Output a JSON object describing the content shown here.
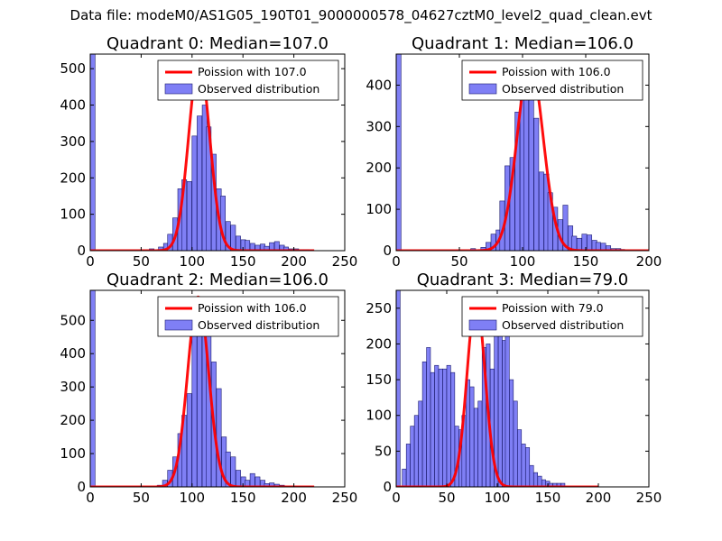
{
  "figure_title": "Data file: modeM0/AS1G05_190T01_9000000578_04627cztM0_level2_quad_clean.evt",
  "colors": {
    "bar_fill": "#7f7ff5",
    "bar_edge": "#1a1a6e",
    "curve": "#ff0000"
  },
  "chart_data": [
    {
      "type": "bar",
      "title": "Quadrant 0: Median=107.0",
      "xlim": [
        0,
        250
      ],
      "ylim": [
        0,
        540
      ],
      "xticks": [
        0,
        50,
        100,
        150,
        200,
        250
      ],
      "yticks": [
        0,
        100,
        200,
        300,
        400,
        500
      ],
      "legend": {
        "placement": "top-right",
        "curve_label": "Poission with 107.0",
        "bar_label": "Observed distribution"
      },
      "bin_width": 4.7,
      "bins": [
        [
          0,
          540
        ],
        [
          58,
          5
        ],
        [
          67,
          10
        ],
        [
          72,
          20
        ],
        [
          76,
          45
        ],
        [
          81,
          90
        ],
        [
          86,
          170
        ],
        [
          90,
          195
        ],
        [
          95,
          190
        ],
        [
          100,
          315
        ],
        [
          105,
          370
        ],
        [
          110,
          400
        ],
        [
          114,
          340
        ],
        [
          119,
          265
        ],
        [
          124,
          170
        ],
        [
          128,
          150
        ],
        [
          133,
          80
        ],
        [
          138,
          70
        ],
        [
          143,
          40
        ],
        [
          148,
          30
        ],
        [
          152,
          28
        ],
        [
          157,
          20
        ],
        [
          162,
          15
        ],
        [
          167,
          18
        ],
        [
          171,
          12
        ],
        [
          176,
          22
        ],
        [
          181,
          25
        ],
        [
          186,
          15
        ],
        [
          190,
          10
        ],
        [
          195,
          5
        ],
        [
          200,
          5
        ],
        [
          205,
          3
        ],
        [
          210,
          3
        ],
        [
          214,
          2
        ]
      ],
      "poisson_mean": 107.0,
      "poisson_peak": 520,
      "curve_range": [
        0,
        220
      ]
    },
    {
      "type": "bar",
      "title": "Quadrant 1: Median=106.0",
      "xlim": [
        0,
        200
      ],
      "ylim": [
        0,
        475
      ],
      "xticks": [
        0,
        50,
        100,
        150,
        200
      ],
      "yticks": [
        0,
        100,
        200,
        300,
        400
      ],
      "legend": {
        "placement": "top-right",
        "curve_label": "Poission with 106.0",
        "bar_label": "Observed distribution"
      },
      "bin_width": 3.8,
      "bins": [
        [
          0,
          475
        ],
        [
          59,
          5
        ],
        [
          67,
          8
        ],
        [
          71,
          20
        ],
        [
          75,
          40
        ],
        [
          79,
          50
        ],
        [
          82,
          120
        ],
        [
          86,
          205
        ],
        [
          90,
          225
        ],
        [
          94,
          335
        ],
        [
          98,
          450
        ],
        [
          101,
          455
        ],
        [
          105,
          380
        ],
        [
          109,
          320
        ],
        [
          113,
          190
        ],
        [
          117,
          185
        ],
        [
          120,
          140
        ],
        [
          124,
          105
        ],
        [
          128,
          75
        ],
        [
          132,
          110
        ],
        [
          136,
          60
        ],
        [
          139,
          35
        ],
        [
          143,
          30
        ],
        [
          147,
          40
        ],
        [
          151,
          38
        ],
        [
          155,
          25
        ],
        [
          158,
          20
        ],
        [
          162,
          18
        ],
        [
          166,
          12
        ],
        [
          170,
          5
        ],
        [
          174,
          5
        ],
        [
          177,
          3
        ]
      ],
      "poisson_mean": 106.0,
      "poisson_peak": 455,
      "curve_range": [
        0,
        200
      ]
    },
    {
      "type": "bar",
      "title": "Quadrant 2: Median=106.0",
      "xlim": [
        0,
        250
      ],
      "ylim": [
        0,
        590
      ],
      "xticks": [
        0,
        50,
        100,
        150,
        200,
        250
      ],
      "yticks": [
        0,
        100,
        200,
        300,
        400,
        500
      ],
      "legend": {
        "placement": "top-right",
        "curve_label": "Poission with 106.0",
        "bar_label": "Observed distribution"
      },
      "bin_width": 4.7,
      "bins": [
        [
          0,
          590
        ],
        [
          66,
          5
        ],
        [
          71,
          20
        ],
        [
          76,
          50
        ],
        [
          81,
          90
        ],
        [
          86,
          160
        ],
        [
          90,
          215
        ],
        [
          95,
          280
        ],
        [
          100,
          460
        ],
        [
          105,
          520
        ],
        [
          110,
          560
        ],
        [
          114,
          495
        ],
        [
          119,
          375
        ],
        [
          124,
          295
        ],
        [
          129,
          150
        ],
        [
          133,
          105
        ],
        [
          138,
          90
        ],
        [
          143,
          50
        ],
        [
          148,
          30
        ],
        [
          152,
          20
        ],
        [
          157,
          40
        ],
        [
          162,
          30
        ],
        [
          167,
          20
        ],
        [
          171,
          10
        ],
        [
          176,
          12
        ],
        [
          181,
          8
        ],
        [
          186,
          5
        ],
        [
          191,
          3
        ],
        [
          195,
          3
        ],
        [
          200,
          2
        ],
        [
          205,
          2
        ],
        [
          210,
          2
        ],
        [
          214,
          2
        ]
      ],
      "poisson_mean": 106.0,
      "poisson_peak": 570,
      "curve_range": [
        0,
        220
      ]
    },
    {
      "type": "bar",
      "title": "Quadrant 3: Median=79.0",
      "xlim": [
        0,
        250
      ],
      "ylim": [
        0,
        275
      ],
      "xticks": [
        0,
        50,
        100,
        150,
        200,
        250
      ],
      "yticks": [
        0,
        50,
        100,
        150,
        200,
        250
      ],
      "legend": {
        "placement": "top-right",
        "curve_label": "Poission with 79.0",
        "bar_label": "Observed distribution"
      },
      "bin_width": 3.9,
      "bins": [
        [
          0,
          275
        ],
        [
          6,
          25
        ],
        [
          10,
          60
        ],
        [
          14,
          85
        ],
        [
          18,
          100
        ],
        [
          22,
          120
        ],
        [
          26,
          175
        ],
        [
          30,
          195
        ],
        [
          34,
          160
        ],
        [
          38,
          170
        ],
        [
          42,
          165
        ],
        [
          46,
          165
        ],
        [
          50,
          170
        ],
        [
          54,
          160
        ],
        [
          58,
          85
        ],
        [
          62,
          80
        ],
        [
          65,
          100
        ],
        [
          69,
          150
        ],
        [
          73,
          140
        ],
        [
          77,
          110
        ],
        [
          81,
          120
        ],
        [
          85,
          195
        ],
        [
          89,
          200
        ],
        [
          93,
          165
        ],
        [
          97,
          220
        ],
        [
          101,
          230
        ],
        [
          105,
          205
        ],
        [
          108,
          230
        ],
        [
          112,
          150
        ],
        [
          116,
          120
        ],
        [
          120,
          80
        ],
        [
          124,
          60
        ],
        [
          128,
          55
        ],
        [
          132,
          30
        ],
        [
          136,
          20
        ],
        [
          140,
          15
        ],
        [
          144,
          10
        ],
        [
          148,
          8
        ],
        [
          151,
          5
        ],
        [
          155,
          5
        ],
        [
          159,
          5
        ],
        [
          163,
          5
        ]
      ],
      "poisson_mean": 79.0,
      "poisson_peak": 262,
      "curve_range": [
        0,
        200
      ]
    }
  ]
}
